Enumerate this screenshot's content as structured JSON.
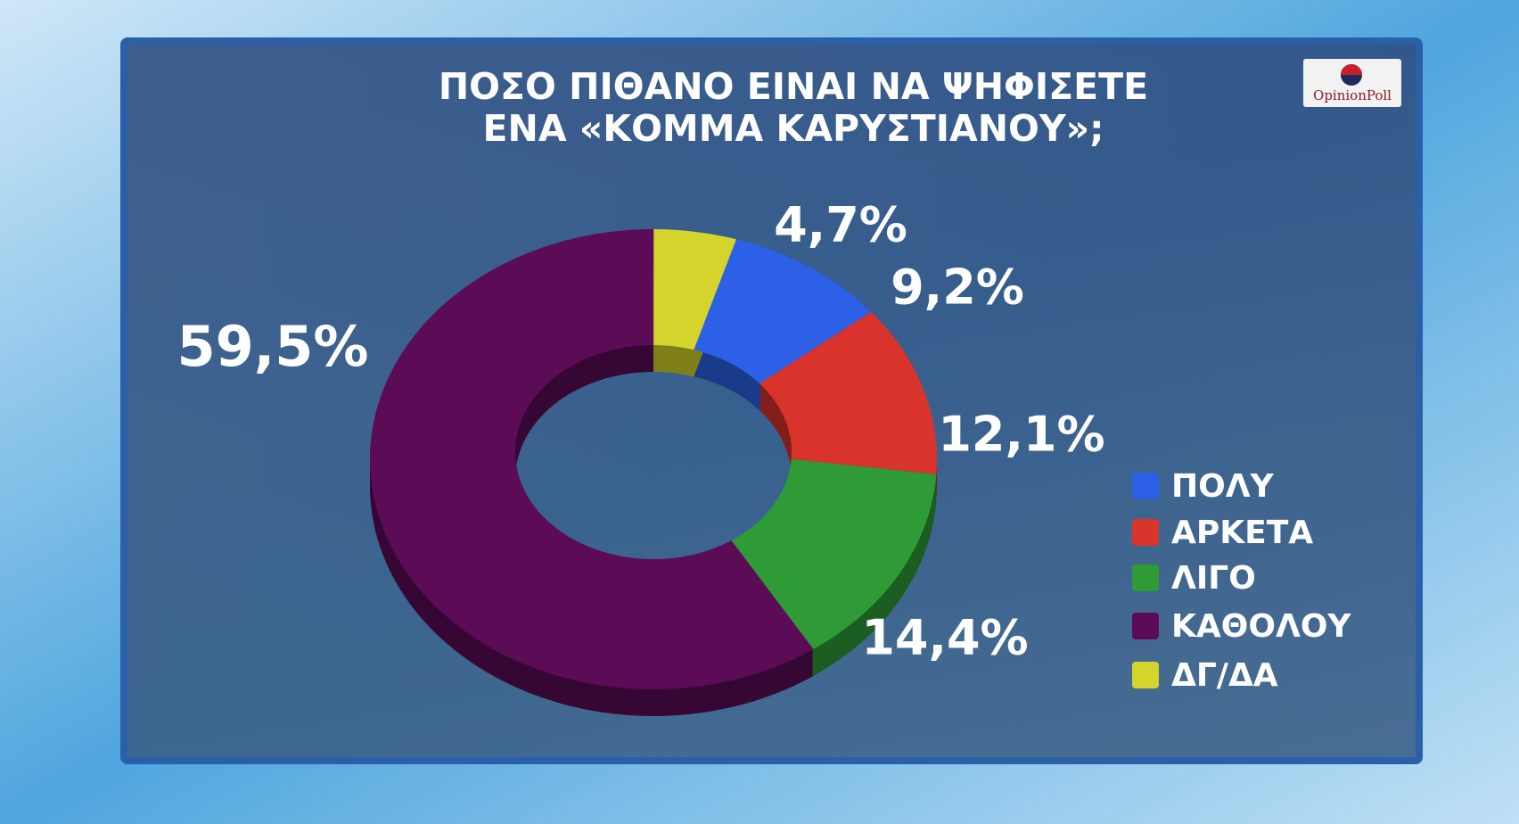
{
  "chart_data": {
    "type": "pie",
    "title": [
      "ΠΟΣΟ ΠΙΘΑΝΟ ΕΙΝΑΙ ΝΑ ΨΗΦΙΣΕΤΕ",
      "ΕΝΑ «ΚΟΜΜΑ ΚΑΡΥΣΤΙΑΝΟΥ»;"
    ],
    "logo": "OpinionPoll",
    "donut": true,
    "categories": [
      "ΠΟΛΥ",
      "ΑΡΚΕΤΑ",
      "ΛΙΓΟ",
      "ΚΑΘΟΛΟΥ",
      "ΔΓ/ΔΑ"
    ],
    "values": [
      9.2,
      12.1,
      14.4,
      59.5,
      4.7
    ],
    "value_labels": [
      "9,2%",
      "12,1%",
      "14,4%",
      "59,5%",
      "4,7%"
    ],
    "colors": [
      "#2c60e6",
      "#d8342b",
      "#2f9b37",
      "#5c0b57",
      "#d4d42c"
    ],
    "legend": "right"
  }
}
